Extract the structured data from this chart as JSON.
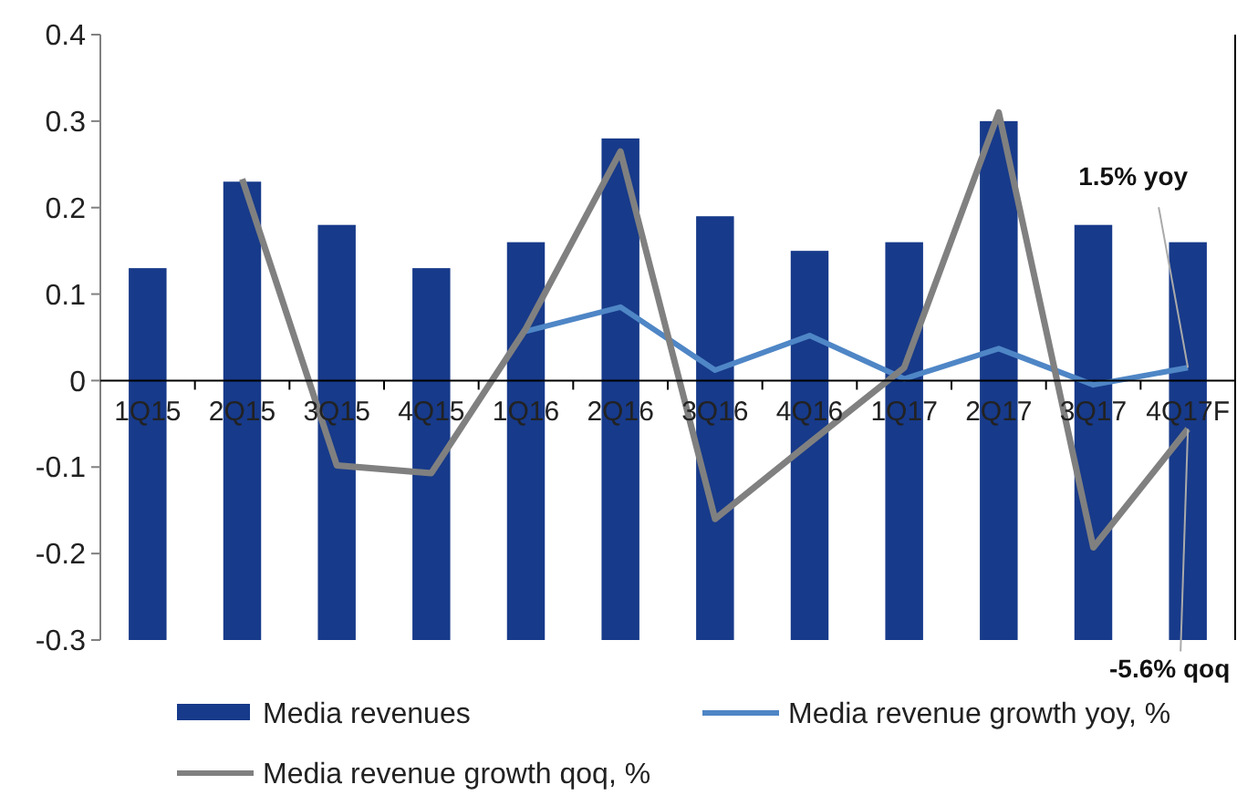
{
  "chart_data": {
    "type": "bar",
    "categories": [
      "1Q15",
      "2Q15",
      "3Q15",
      "4Q15",
      "1Q16",
      "2Q16",
      "3Q16",
      "4Q16",
      "1Q17",
      "2Q17",
      "3Q17",
      "4Q17F"
    ],
    "series": [
      {
        "name": "Media revenues",
        "color": "#173a8a",
        "base": [
          -0.3,
          -0.3,
          -0.3,
          -0.3,
          -0.3,
          -0.3,
          -0.3,
          -0.3,
          -0.3,
          -0.3,
          -0.3,
          -0.3
        ],
        "values": [
          0.43,
          0.53,
          0.48,
          0.43,
          0.46,
          0.58,
          0.49,
          0.45,
          0.46,
          0.6,
          0.48,
          0.46
        ]
      },
      {
        "name": "Media revenue growth yoy, %",
        "type": "line",
        "color": "#4f86c6",
        "values": [
          null,
          null,
          null,
          null,
          0.057,
          0.085,
          0.012,
          0.052,
          0.002,
          0.037,
          -0.005,
          0.015
        ]
      },
      {
        "name": "Media revenue growth qoq, %",
        "type": "line",
        "color": "#808080",
        "values": [
          null,
          0.233,
          -0.098,
          -0.107,
          0.06,
          0.265,
          -0.16,
          -0.072,
          0.015,
          0.31,
          -0.193,
          -0.056
        ]
      }
    ],
    "ylim": [
      -0.3,
      0.4
    ],
    "yticks": [
      -0.3,
      -0.2,
      -0.1,
      0,
      0.1,
      0.2,
      0.3,
      0.4
    ],
    "annotations": [
      {
        "text": "1.5% yoy",
        "x": "4Q17F",
        "y": 0.015
      },
      {
        "text": "-5.6% qoq",
        "x": "4Q17F",
        "y": -0.056
      }
    ],
    "legend": "bottom",
    "grid": false,
    "marker": "none",
    "line_style": "solid"
  }
}
